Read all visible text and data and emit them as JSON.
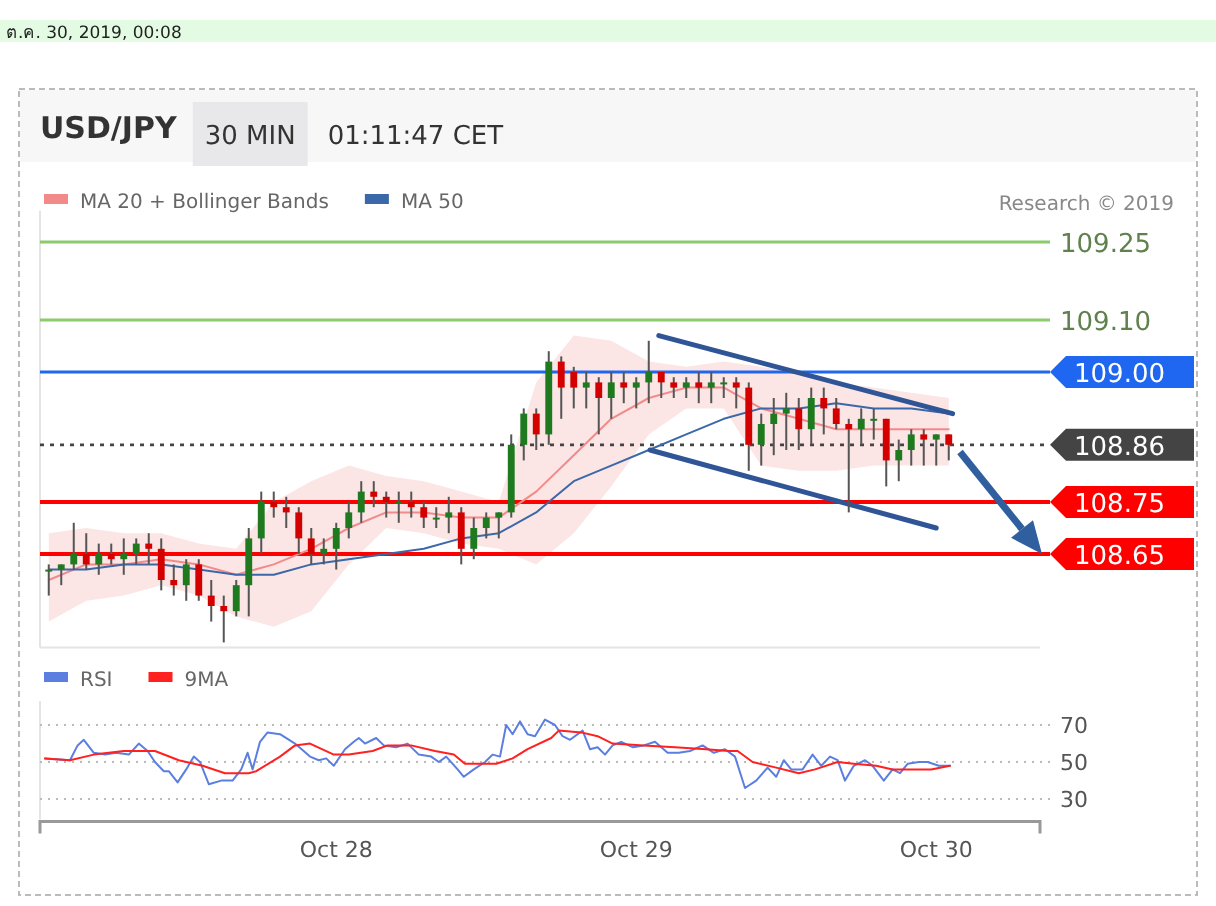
{
  "chart_data": [
    {
      "type": "candlestick",
      "title": "USD/JPY",
      "subtitle": "30 MIN",
      "annotations": [
        "ต.ค. 30, 2019, 00:08",
        "01:11:47 CET",
        "Research © 2019"
      ],
      "xlim": [
        "2019-10-27T00:18",
        "2019-10-30T08:18"
      ],
      "ylim": [
        108.47,
        109.31
      ],
      "tick_labels": false,
      "legend": "top left",
      "x": [
        "2019-10-27T01:00",
        "2019-10-27T02:00",
        "2019-10-27T03:00",
        "2019-10-27T04:00",
        "2019-10-27T05:00",
        "2019-10-27T06:00",
        "2019-10-27T07:00",
        "2019-10-27T08:00",
        "2019-10-27T09:00",
        "2019-10-27T10:00",
        "2019-10-27T11:00",
        "2019-10-27T12:00",
        "2019-10-27T13:00",
        "2019-10-27T14:00",
        "2019-10-27T15:00",
        "2019-10-27T16:00",
        "2019-10-27T17:00",
        "2019-10-27T18:00",
        "2019-10-27T19:00",
        "2019-10-27T20:00",
        "2019-10-27T21:00",
        "2019-10-27T22:00",
        "2019-10-27T23:00",
        "2019-10-28T00:00",
        "2019-10-28T01:00",
        "2019-10-28T02:00",
        "2019-10-28T03:00",
        "2019-10-28T04:00",
        "2019-10-28T05:00",
        "2019-10-28T06:00",
        "2019-10-28T07:00",
        "2019-10-28T08:00",
        "2019-10-28T09:00",
        "2019-10-28T10:00",
        "2019-10-28T11:00",
        "2019-10-28T12:00",
        "2019-10-28T13:00",
        "2019-10-28T14:00",
        "2019-10-28T15:00",
        "2019-10-28T16:00",
        "2019-10-28T17:00",
        "2019-10-28T18:00",
        "2019-10-28T19:00",
        "2019-10-28T20:00",
        "2019-10-28T21:00",
        "2019-10-28T22:00",
        "2019-10-28T23:00",
        "2019-10-29T00:00",
        "2019-10-29T01:00",
        "2019-10-29T02:00",
        "2019-10-29T03:00",
        "2019-10-29T04:00",
        "2019-10-29T05:00",
        "2019-10-29T06:00",
        "2019-10-29T07:00",
        "2019-10-29T08:00",
        "2019-10-29T09:00",
        "2019-10-29T10:00",
        "2019-10-29T11:00",
        "2019-10-29T12:00",
        "2019-10-29T13:00",
        "2019-10-29T14:00",
        "2019-10-29T15:00",
        "2019-10-29T16:00",
        "2019-10-29T17:00",
        "2019-10-29T18:00",
        "2019-10-29T19:00",
        "2019-10-29T20:00",
        "2019-10-29T21:00",
        "2019-10-29T22:00",
        "2019-10-29T23:00",
        "2019-10-30T00:00",
        "2019-10-30T01:00"
      ],
      "ohlc": [
        [
          108.62,
          108.63,
          108.57,
          108.62
        ],
        [
          108.62,
          108.63,
          108.59,
          108.63
        ],
        [
          108.63,
          108.71,
          108.62,
          108.65
        ],
        [
          108.65,
          108.69,
          108.62,
          108.63
        ],
        [
          108.63,
          108.67,
          108.61,
          108.65
        ],
        [
          108.65,
          108.67,
          108.63,
          108.64
        ],
        [
          108.64,
          108.68,
          108.61,
          108.65
        ],
        [
          108.65,
          108.68,
          108.63,
          108.67
        ],
        [
          108.67,
          108.69,
          108.63,
          108.66
        ],
        [
          108.66,
          108.68,
          108.58,
          108.6
        ],
        [
          108.6,
          108.63,
          108.57,
          108.59
        ],
        [
          108.59,
          108.64,
          108.56,
          108.63
        ],
        [
          108.63,
          108.64,
          108.56,
          108.57
        ],
        [
          108.57,
          108.6,
          108.52,
          108.55
        ],
        [
          108.55,
          108.57,
          108.48,
          108.54
        ],
        [
          108.54,
          108.6,
          108.53,
          108.59
        ],
        [
          108.59,
          108.7,
          108.53,
          108.68
        ],
        [
          108.68,
          108.77,
          108.65,
          108.75
        ],
        [
          108.75,
          108.77,
          108.72,
          108.74
        ],
        [
          108.74,
          108.76,
          108.7,
          108.73
        ],
        [
          108.73,
          108.74,
          108.65,
          108.68
        ],
        [
          108.68,
          108.7,
          108.63,
          108.65
        ],
        [
          108.65,
          108.68,
          108.63,
          108.66
        ],
        [
          108.66,
          108.71,
          108.62,
          108.7
        ],
        [
          108.7,
          108.75,
          108.68,
          108.73
        ],
        [
          108.73,
          108.79,
          108.71,
          108.77
        ],
        [
          108.77,
          108.79,
          108.74,
          108.76
        ],
        [
          108.76,
          108.77,
          108.72,
          108.75
        ],
        [
          108.75,
          108.77,
          108.71,
          108.75
        ],
        [
          108.75,
          108.77,
          108.72,
          108.74
        ],
        [
          108.74,
          108.75,
          108.7,
          108.72
        ],
        [
          108.72,
          108.74,
          108.7,
          108.72
        ],
        [
          108.72,
          108.76,
          108.69,
          108.73
        ],
        [
          108.73,
          108.74,
          108.63,
          108.66
        ],
        [
          108.66,
          108.72,
          108.64,
          108.7
        ],
        [
          108.7,
          108.73,
          108.68,
          108.72
        ],
        [
          108.72,
          108.73,
          108.68,
          108.73
        ],
        [
          108.73,
          108.88,
          108.72,
          108.86
        ],
        [
          108.86,
          108.93,
          108.83,
          108.92
        ],
        [
          108.92,
          108.93,
          108.85,
          108.88
        ],
        [
          108.88,
          109.04,
          108.86,
          109.02
        ],
        [
          109.02,
          109.03,
          108.91,
          108.97
        ],
        [
          109.0,
          109.01,
          108.93,
          108.97
        ],
        [
          108.97,
          109.0,
          108.93,
          108.98
        ],
        [
          108.98,
          108.99,
          108.88,
          108.95
        ],
        [
          108.95,
          109.0,
          108.91,
          108.98
        ],
        [
          108.98,
          109.0,
          108.94,
          108.97
        ],
        [
          108.97,
          108.99,
          108.93,
          108.98
        ],
        [
          108.98,
          109.06,
          108.94,
          109.0
        ],
        [
          109.0,
          109.0,
          108.95,
          108.98
        ],
        [
          108.98,
          108.99,
          108.95,
          108.97
        ],
        [
          108.97,
          108.99,
          108.95,
          108.98
        ],
        [
          108.98,
          109.0,
          108.94,
          108.97
        ],
        [
          108.97,
          109.0,
          108.94,
          108.98
        ],
        [
          108.98,
          108.99,
          108.95,
          108.98
        ],
        [
          108.98,
          108.99,
          108.93,
          108.97
        ],
        [
          108.97,
          108.98,
          108.81,
          108.86
        ],
        [
          108.86,
          108.92,
          108.82,
          108.9
        ],
        [
          108.9,
          108.95,
          108.84,
          108.92
        ],
        [
          108.92,
          108.96,
          108.85,
          108.93
        ],
        [
          108.93,
          108.95,
          108.85,
          108.89
        ],
        [
          108.89,
          108.97,
          108.86,
          108.95
        ],
        [
          108.95,
          108.97,
          108.88,
          108.93
        ],
        [
          108.93,
          108.95,
          108.89,
          108.9
        ],
        [
          108.9,
          108.91,
          108.73,
          108.89
        ],
        [
          108.89,
          108.93,
          108.86,
          108.91
        ],
        [
          108.91,
          108.93,
          108.87,
          108.91
        ],
        [
          108.91,
          108.91,
          108.78,
          108.83
        ],
        [
          108.83,
          108.87,
          108.79,
          108.85
        ],
        [
          108.85,
          108.89,
          108.82,
          108.88
        ],
        [
          108.88,
          108.89,
          108.82,
          108.87
        ],
        [
          108.87,
          108.88,
          108.82,
          108.88
        ],
        [
          108.88,
          108.88,
          108.83,
          108.86
        ]
      ],
      "series": [
        {
          "name": "MA 20 + Bollinger Bands",
          "type": "line",
          "color": "#f28a8a",
          "x": [
            "2019-10-27T01:00",
            "2019-10-27T04:00",
            "2019-10-27T07:00",
            "2019-10-27T10:00",
            "2019-10-27T13:00",
            "2019-10-27T16:00",
            "2019-10-27T19:00",
            "2019-10-27T22:00",
            "2019-10-28T01:00",
            "2019-10-28T04:00",
            "2019-10-28T07:00",
            "2019-10-28T10:00",
            "2019-10-28T13:00",
            "2019-10-28T16:00",
            "2019-10-28T19:00",
            "2019-10-28T22:00",
            "2019-10-29T01:00",
            "2019-10-29T04:00",
            "2019-10-29T07:00",
            "2019-10-29T10:00",
            "2019-10-29T13:00",
            "2019-10-29T16:00",
            "2019-10-29T19:00",
            "2019-10-29T22:00",
            "2019-10-30T01:00"
          ],
          "values": [
            108.6,
            108.63,
            108.63,
            108.64,
            108.63,
            108.61,
            108.63,
            108.66,
            108.7,
            108.73,
            108.73,
            108.72,
            108.72,
            108.77,
            108.84,
            108.91,
            108.95,
            108.97,
            108.97,
            108.93,
            108.91,
            108.89,
            108.89,
            108.89,
            108.89
          ],
          "lower": [
            108.52,
            108.56,
            108.57,
            108.59,
            108.57,
            108.53,
            108.51,
            108.54,
            108.63,
            108.7,
            108.69,
            108.67,
            108.66,
            108.63,
            108.69,
            108.78,
            108.88,
            108.93,
            108.93,
            108.82,
            108.81,
            108.81,
            108.82,
            108.82,
            108.82
          ],
          "upper": [
            108.69,
            108.7,
            108.69,
            108.69,
            108.67,
            108.66,
            108.75,
            108.79,
            108.82,
            108.8,
            108.79,
            108.77,
            108.75,
            108.98,
            109.07,
            109.06,
            109.02,
            109.01,
            109.02,
            109.01,
            109.0,
            108.98,
            108.97,
            108.96,
            108.95
          ]
        },
        {
          "name": "MA 50",
          "type": "line",
          "color": "#3b68a8",
          "x": [
            "2019-10-27T01:00",
            "2019-10-27T04:00",
            "2019-10-27T07:00",
            "2019-10-27T10:00",
            "2019-10-27T13:00",
            "2019-10-27T16:00",
            "2019-10-27T19:00",
            "2019-10-27T22:00",
            "2019-10-28T01:00",
            "2019-10-28T04:00",
            "2019-10-28T07:00",
            "2019-10-28T10:00",
            "2019-10-28T13:00",
            "2019-10-28T16:00",
            "2019-10-28T19:00",
            "2019-10-28T22:00",
            "2019-10-29T01:00",
            "2019-10-29T04:00",
            "2019-10-29T07:00",
            "2019-10-29T10:00",
            "2019-10-29T13:00",
            "2019-10-29T16:00",
            "2019-10-29T19:00",
            "2019-10-29T22:00",
            "2019-10-30T01:00"
          ],
          "values": [
            108.62,
            108.62,
            108.63,
            108.63,
            108.62,
            108.61,
            108.61,
            108.63,
            108.64,
            108.65,
            108.66,
            108.68,
            108.69,
            108.73,
            108.79,
            108.82,
            108.85,
            108.88,
            108.91,
            108.93,
            108.93,
            108.94,
            108.93,
            108.93,
            108.92
          ]
        },
        {
          "type": "line",
          "color": "#2f5597",
          "x": [
            "2019-10-29T01:48",
            "2019-10-30T01:18"
          ],
          "values": [
            109.07,
            108.92
          ]
        },
        {
          "type": "line",
          "color": "#2f5597",
          "x": [
            "2019-10-29T01:06",
            "2019-10-30T00:00"
          ],
          "values": [
            108.85,
            108.7
          ]
        }
      ],
      "ref_lines": [
        {
          "axis": "y",
          "value": 109.25,
          "label": "109.25",
          "color": "#8ccb6c"
        },
        {
          "axis": "y",
          "value": 109.1,
          "label": "109.10",
          "color": "#8ccb6c"
        },
        {
          "axis": "y",
          "value": 109.0,
          "label": "109.00",
          "color": "#1f67f0"
        },
        {
          "axis": "y",
          "value": 108.86,
          "label": "108.86",
          "color": "#444444",
          "line_style": "dotted"
        },
        {
          "axis": "y",
          "value": 108.75,
          "label": "108.75",
          "color": "#ff0000"
        },
        {
          "axis": "y",
          "value": 108.65,
          "label": "108.65",
          "color": "#ff0000"
        }
      ]
    },
    {
      "type": "line",
      "xlim": [
        "2019-10-27T00:18",
        "2019-10-30T08:18"
      ],
      "ylim": [
        19,
        83
      ],
      "yticks": [
        30,
        50,
        70
      ],
      "grid": "y",
      "legend": "top left",
      "xticks": [
        {
          "value": "2019-10-28",
          "label": "Oct 28"
        },
        {
          "value": "2019-10-29",
          "label": "Oct 29"
        },
        {
          "value": "2019-10-30",
          "label": "Oct 30"
        }
      ],
      "series": [
        {
          "name": "RSI",
          "color": "#5b7fe0",
          "x": [
            "2019-10-27T00:42",
            "2019-10-27T02:42",
            "2019-10-27T03:18",
            "2019-10-27T03:48",
            "2019-10-27T04:36",
            "2019-10-27T05:30",
            "2019-10-27T06:24",
            "2019-10-27T07:24",
            "2019-10-27T08:12",
            "2019-10-27T08:54",
            "2019-10-27T09:30",
            "2019-10-27T10:12",
            "2019-10-27T10:36",
            "2019-10-27T11:18",
            "2019-10-27T12:00",
            "2019-10-27T12:36",
            "2019-10-27T13:06",
            "2019-10-27T13:48",
            "2019-10-27T14:48",
            "2019-10-27T15:42",
            "2019-10-27T16:24",
            "2019-10-27T16:54",
            "2019-10-27T17:18",
            "2019-10-27T17:54",
            "2019-10-27T18:30",
            "2019-10-27T19:30",
            "2019-10-27T20:42",
            "2019-10-27T21:54",
            "2019-10-27T22:36",
            "2019-10-27T23:12",
            "2019-10-27T23:48",
            "2019-10-28T00:42",
            "2019-10-28T01:24",
            "2019-10-28T01:48",
            "2019-10-28T02:18",
            "2019-10-28T03:12",
            "2019-10-28T03:48",
            "2019-10-28T04:48",
            "2019-10-28T05:42",
            "2019-10-28T06:36",
            "2019-10-28T07:36",
            "2019-10-28T08:12",
            "2019-10-28T08:48",
            "2019-10-28T09:42",
            "2019-10-28T10:12",
            "2019-10-28T11:00",
            "2019-10-28T11:54",
            "2019-10-28T12:30",
            "2019-10-28T13:06",
            "2019-10-28T13:36",
            "2019-10-28T14:06",
            "2019-10-28T14:42",
            "2019-10-28T15:18",
            "2019-10-28T15:54",
            "2019-10-28T16:42",
            "2019-10-28T17:30",
            "2019-10-28T18:06",
            "2019-10-28T18:42",
            "2019-10-28T19:42",
            "2019-10-28T20:18",
            "2019-10-28T20:54",
            "2019-10-28T21:30",
            "2019-10-28T22:06",
            "2019-10-28T22:48",
            "2019-10-28T23:42",
            "2019-10-29T00:36",
            "2019-10-29T01:30",
            "2019-10-29T02:30",
            "2019-10-29T03:24",
            "2019-10-29T04:18",
            "2019-10-29T05:18",
            "2019-10-29T06:12",
            "2019-10-29T07:06",
            "2019-10-29T07:54",
            "2019-10-29T08:42",
            "2019-10-29T09:36",
            "2019-10-29T10:30",
            "2019-10-29T11:12",
            "2019-10-29T11:48",
            "2019-10-29T12:24",
            "2019-10-29T13:18",
            "2019-10-29T14:06",
            "2019-10-29T14:48",
            "2019-10-29T15:30",
            "2019-10-29T16:06",
            "2019-10-29T16:42",
            "2019-10-29T17:24",
            "2019-10-29T18:18",
            "2019-10-29T18:54",
            "2019-10-29T19:48",
            "2019-10-29T20:30",
            "2019-10-29T21:06",
            "2019-10-29T21:42",
            "2019-10-29T22:36",
            "2019-10-29T23:18",
            "2019-10-30T00:12",
            "2019-10-30T01:06"
          ],
          "values": [
            52,
            51,
            59,
            62,
            55,
            54,
            55,
            54,
            60,
            56,
            50,
            45,
            45,
            39,
            46,
            53,
            50,
            38,
            40,
            40,
            46,
            55,
            46,
            61,
            66,
            65,
            60,
            53,
            51,
            52,
            48,
            57,
            61,
            63,
            60,
            63,
            59,
            58,
            60,
            54,
            53,
            50,
            53,
            46,
            42,
            46,
            50,
            54,
            53,
            70,
            65,
            72,
            65,
            64,
            73,
            70,
            64,
            62,
            67,
            57,
            58,
            54,
            59,
            61,
            58,
            59,
            61,
            55,
            55,
            56,
            59,
            55,
            57,
            53,
            36,
            40,
            47,
            42,
            51,
            46,
            46,
            54,
            48,
            53,
            51,
            40,
            48,
            51,
            48,
            40,
            46,
            44,
            49,
            50,
            50,
            48,
            48
          ]
        },
        {
          "name": "9MA",
          "color": "#ff2020",
          "x": [
            "2019-10-27T00:42",
            "2019-10-27T02:42",
            "2019-10-27T04:36",
            "2019-10-27T07:00",
            "2019-10-27T09:30",
            "2019-10-27T11:24",
            "2019-10-27T13:18",
            "2019-10-27T15:06",
            "2019-10-27T17:00",
            "2019-10-27T17:36",
            "2019-10-27T19:30",
            "2019-10-27T20:42",
            "2019-10-27T21:54",
            "2019-10-27T23:48",
            "2019-10-28T01:00",
            "2019-10-28T02:54",
            "2019-10-28T04:06",
            "2019-10-28T06:00",
            "2019-10-28T07:54",
            "2019-10-28T09:24",
            "2019-10-28T10:18",
            "2019-10-28T12:48",
            "2019-10-28T14:06",
            "2019-10-28T15:18",
            "2019-10-28T17:12",
            "2019-10-28T17:48",
            "2019-10-28T19:36",
            "2019-10-28T20:54",
            "2019-10-28T22:06",
            "2019-10-29T00:36",
            "2019-10-29T03:06",
            "2019-10-29T05:36",
            "2019-10-29T07:24",
            "2019-10-29T08:06",
            "2019-10-29T09:18",
            "2019-10-29T11:12",
            "2019-10-29T13:00",
            "2019-10-29T14:18",
            "2019-10-29T16:06",
            "2019-10-29T17:24",
            "2019-10-29T19:12",
            "2019-10-29T20:30",
            "2019-10-29T22:18",
            "2019-10-29T23:36",
            "2019-10-30T01:06"
          ],
          "values": [
            52,
            51,
            54,
            56,
            56,
            51,
            48,
            44,
            44,
            45,
            53,
            59,
            60,
            54,
            54,
            56,
            59,
            59,
            56,
            54,
            49,
            49,
            52,
            57,
            63,
            67,
            66,
            64,
            60,
            59,
            58,
            57,
            56,
            56,
            50,
            47,
            44,
            46,
            50,
            49,
            48,
            46,
            46,
            46,
            48
          ]
        }
      ]
    }
  ]
}
